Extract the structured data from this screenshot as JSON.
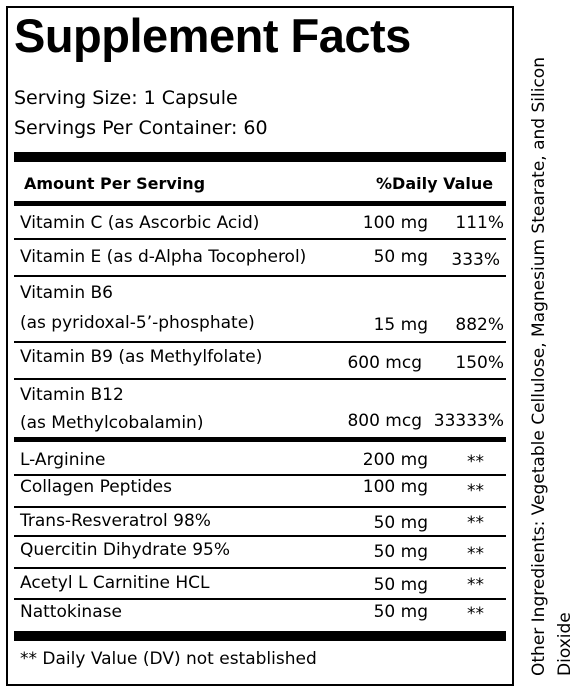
{
  "title": "Supplement Facts",
  "serving_size": "Serving Size: 1 Capsule",
  "servings_per_container": "Servings Per Container:  60",
  "header": {
    "amount_label": "Amount Per Serving",
    "dv_label": "%Daily Value"
  },
  "vitamins": [
    {
      "name_line1": "Vitamin C (as Ascorbic Acid)",
      "name_line2": "",
      "amount": "100 mg",
      "dv": "111%"
    },
    {
      "name_line1": "Vitamin E (as d-Alpha Tocopherol)",
      "name_line2": "",
      "amount": "50 mg",
      "dv": "333%"
    },
    {
      "name_line1": "Vitamin B6",
      "name_line2": "(as pyridoxal-5’-phosphate)",
      "amount": "15 mg",
      "dv": "882%"
    },
    {
      "name_line1": "Vitamin B9 (as Methylfolate)",
      "name_line2": "",
      "amount": "600 mcg",
      "dv": "150%"
    },
    {
      "name_line1": "Vitamin B12",
      "name_line2": "(as Methylcobalamin)",
      "amount": "800 mcg",
      "dv": "33333%"
    }
  ],
  "others": [
    {
      "name": "L-Arginine",
      "amount": "200 mg",
      "dv": "**"
    },
    {
      "name": "Collagen Peptides",
      "amount": "100 mg",
      "dv": "**"
    },
    {
      "name": "Trans-Resveratrol 98%",
      "amount": "50 mg",
      "dv": "**"
    },
    {
      "name": "Quercitin Dihydrate 95%",
      "amount": "50 mg",
      "dv": "**"
    },
    {
      "name": "Acetyl L Carnitine HCL",
      "amount": "50 mg",
      "dv": "**"
    },
    {
      "name": "Nattokinase",
      "amount": "50 mg",
      "dv": "**"
    }
  ],
  "footnote": "** Daily Value (DV) not established",
  "other_ingredients": "Other Ingredients:  Vegetable Cellulose, Magnesium Stearate, and Silicon Dioxide"
}
